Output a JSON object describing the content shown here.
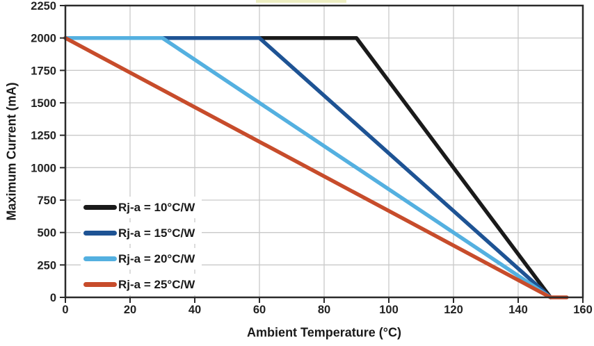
{
  "chart_data": {
    "type": "line",
    "title": "",
    "xlabel": "Ambient Temperature (°C)",
    "ylabel": "Maximum Current (mA)",
    "xlim": [
      0,
      160
    ],
    "ylim": [
      0,
      2250
    ],
    "x_ticks": [
      0,
      20,
      40,
      60,
      80,
      100,
      120,
      140,
      160
    ],
    "y_ticks": [
      0,
      250,
      500,
      750,
      1000,
      1250,
      1500,
      1750,
      2000,
      2250
    ],
    "grid": true,
    "legend_position": "inside-lower-left",
    "series": [
      {
        "name": "Rj-a = 10°C/W",
        "color": "#1a1a1a",
        "points": [
          [
            0,
            2000
          ],
          [
            90,
            2000
          ],
          [
            150,
            0
          ]
        ]
      },
      {
        "name": "Rj-a = 15°C/W",
        "color": "#1e5394",
        "points": [
          [
            0,
            2000
          ],
          [
            60,
            2000
          ],
          [
            150,
            0
          ]
        ]
      },
      {
        "name": "Rj-a = 20°C/W",
        "color": "#54b0e0",
        "points": [
          [
            0,
            2000
          ],
          [
            30,
            2000
          ],
          [
            150,
            0
          ]
        ]
      },
      {
        "name": "Rj-a = 25°C/W",
        "color": "#c74c2b",
        "points": [
          [
            0,
            2000
          ],
          [
            150,
            0
          ],
          [
            155,
            0
          ]
        ]
      }
    ]
  },
  "decorations": {
    "top_highlight_color": "#edeec1"
  },
  "colors": {
    "grid": "#c9c9c9",
    "axis": "#2a2a2a",
    "tick_text": "#222222"
  }
}
